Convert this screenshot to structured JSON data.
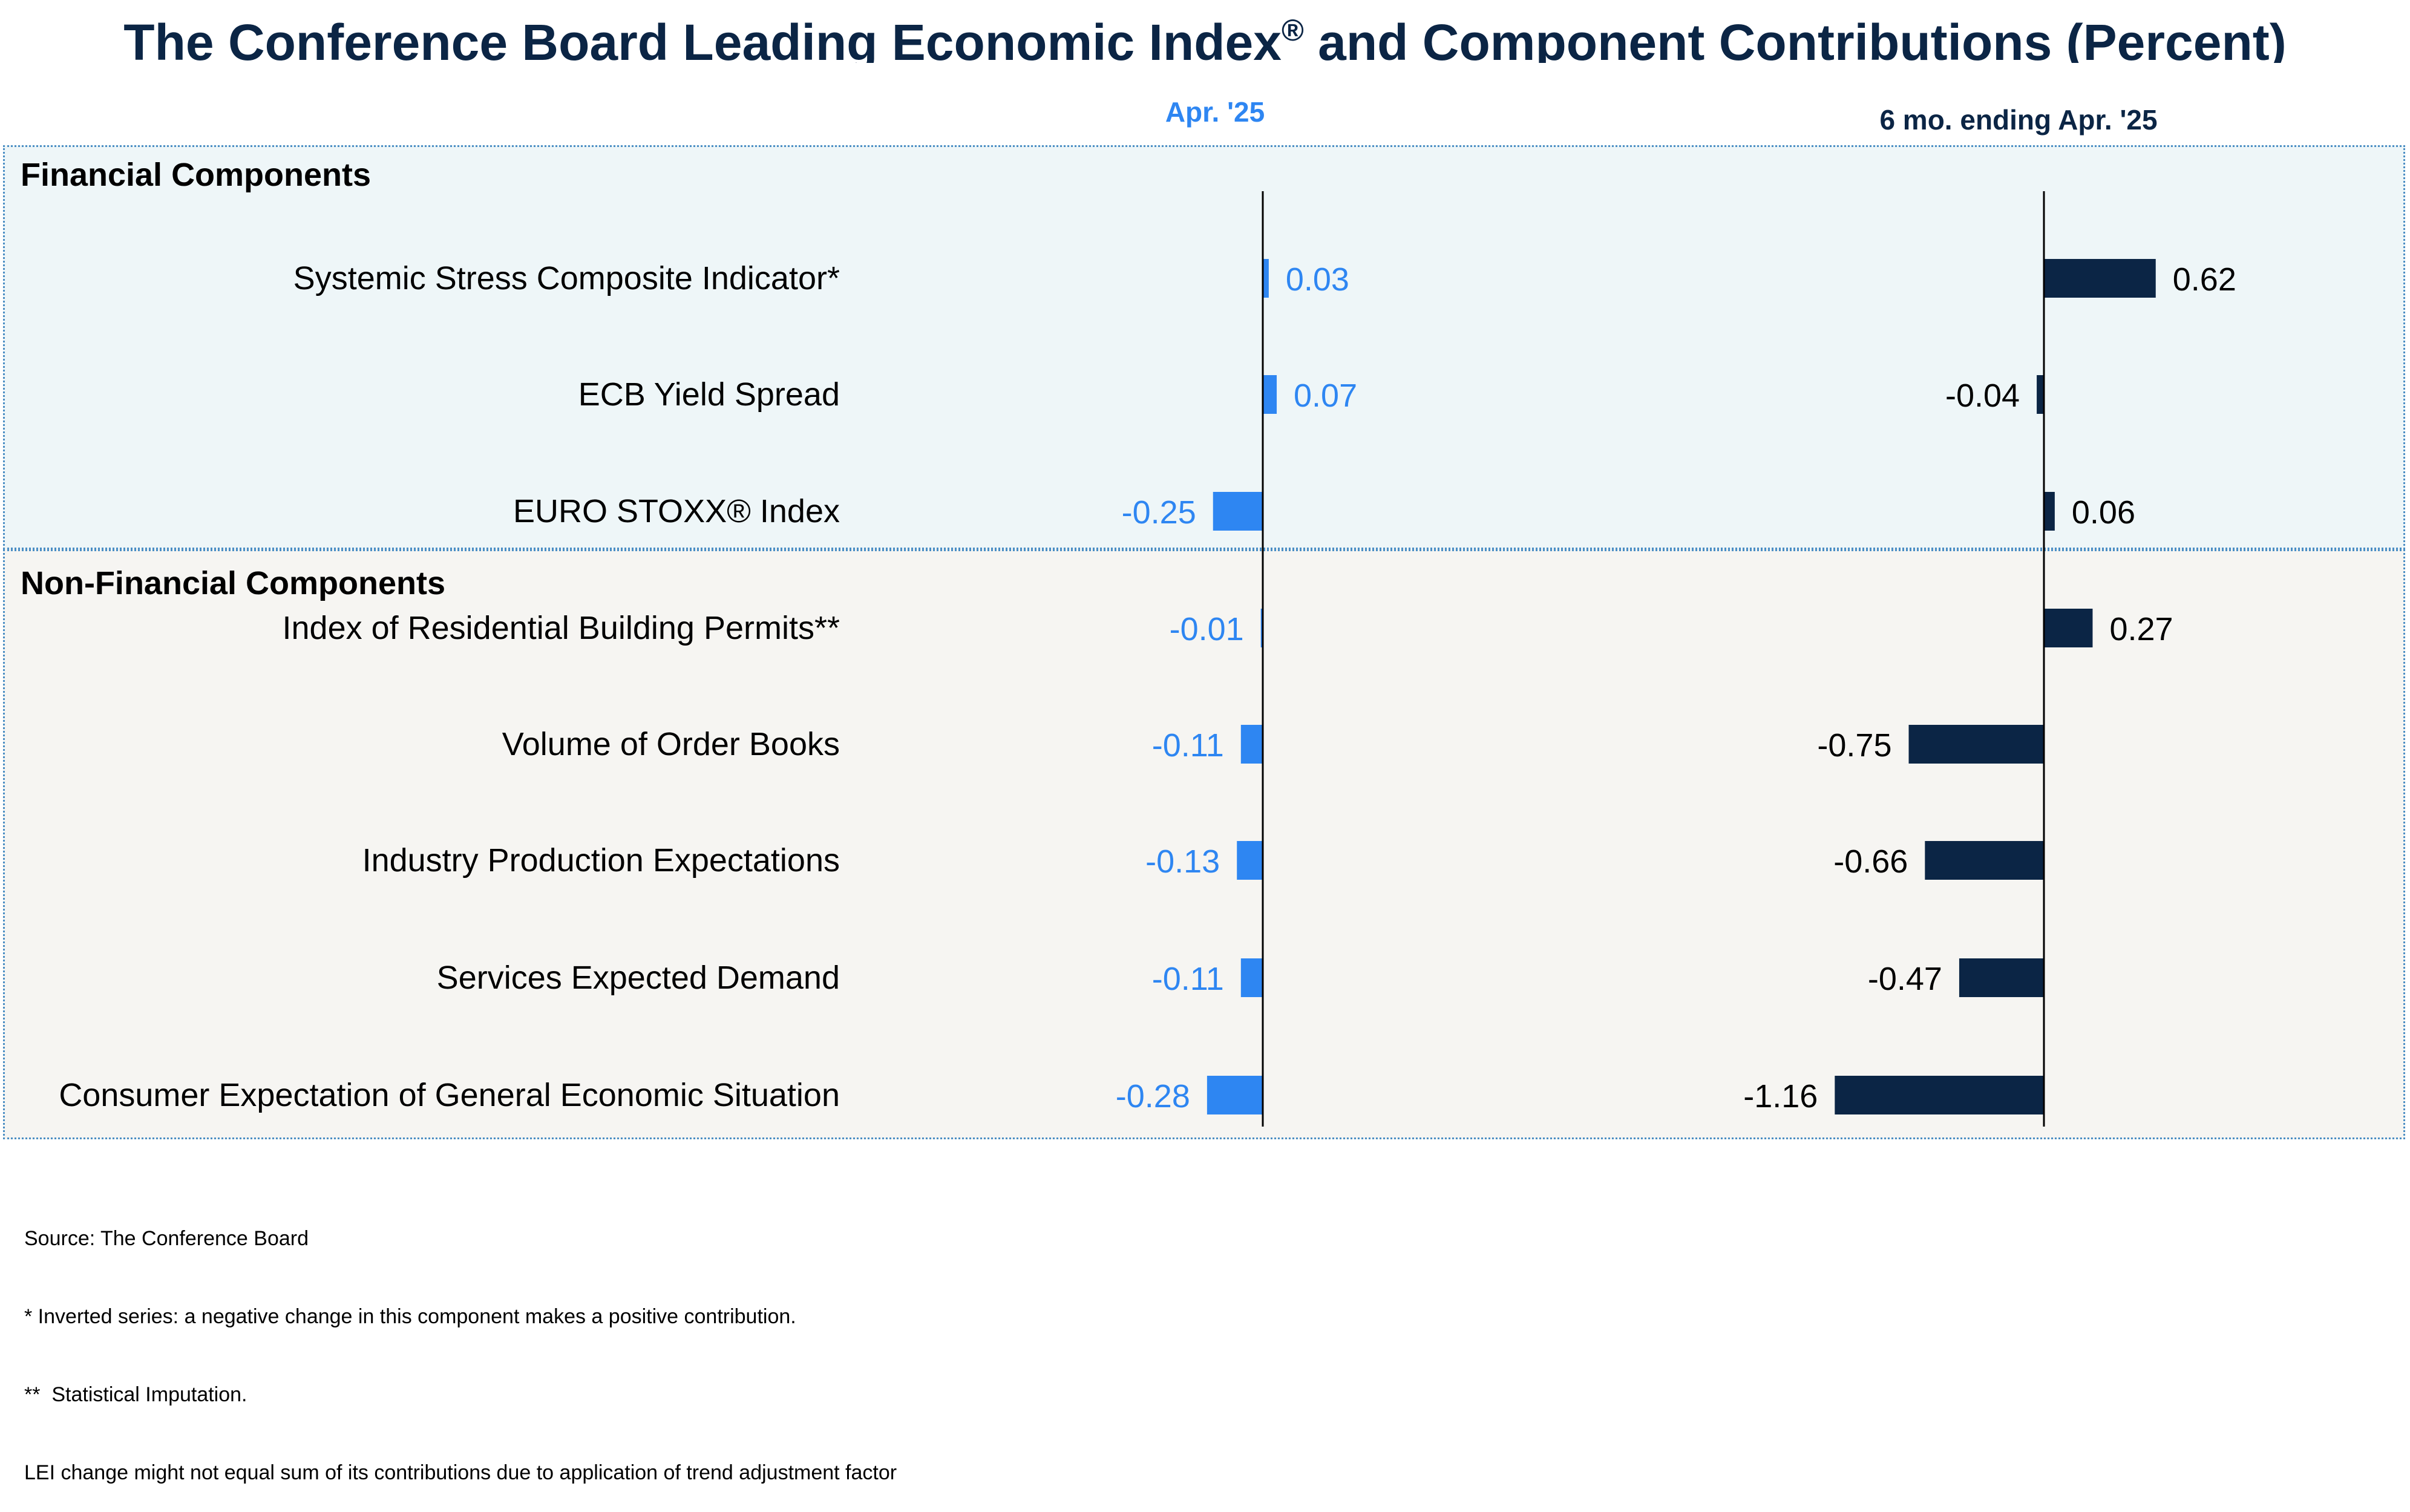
{
  "title": "The Conference Board Leading Economic Index",
  "title_mark": "®",
  "title_rest": " and Component Contributions (Percent)",
  "sections": {
    "financial": "Financial Components",
    "non_financial": "Non-Financial Components"
  },
  "colors": {
    "apr_series": "#2e86f2",
    "six_month_series": "#0b2545",
    "financial_panel": "#eef6f8",
    "non_financial_panel": "#f6f5f2",
    "panel_border": "#4b8ec4"
  },
  "chart_data": {
    "type": "bar",
    "orientation": "horizontal",
    "categories": [
      "Systemic Stress Composite Indicator*",
      "ECB Yield Spread",
      "EURO STOXX® Index",
      "Index of Residential Building Permits**",
      "Volume of Order Books",
      "Industry Production Expectations",
      "Services Expected Demand",
      "Consumer Expectation of General Economic Situation"
    ],
    "series": [
      {
        "name": "Apr. '25",
        "values": [
          0.03,
          0.07,
          -0.25,
          -0.01,
          -0.11,
          -0.13,
          -0.11,
          -0.28
        ],
        "labels": [
          "0.03",
          "0.07",
          "-0.25",
          "-0.01",
          "-0.11",
          "-0.13",
          "-0.11",
          "-0.28"
        ]
      },
      {
        "name": "6 mo. ending Apr. '25",
        "values": [
          0.62,
          -0.04,
          0.06,
          0.27,
          -0.75,
          -0.66,
          -0.47,
          -1.16
        ],
        "labels": [
          "0.62",
          "-0.04",
          "0.06",
          "0.27",
          "-0.75",
          "-0.66",
          "-0.47",
          "-1.16"
        ]
      }
    ],
    "groups": [
      {
        "name": "Financial Components",
        "count": 3
      },
      {
        "name": "Non-Financial Components",
        "count": 5
      }
    ]
  },
  "footnotes": [
    "Source: The Conference Board",
    "* Inverted series: a negative change in this component makes a positive contribution.",
    "**  Statistical Imputation.",
    "LEI change might not equal sum of its contributions due to application of trend adjustment factor"
  ]
}
